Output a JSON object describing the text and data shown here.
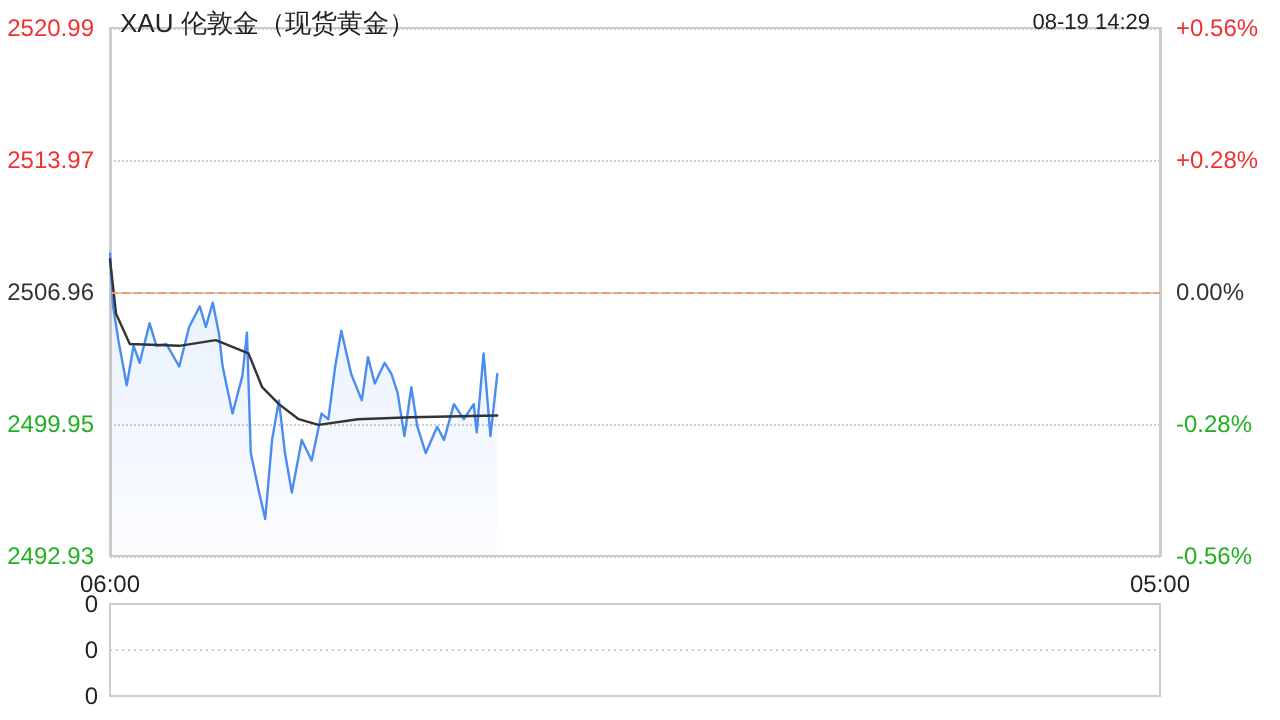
{
  "chart_data": [
    {
      "type": "line",
      "title": "XAU 伦敦金（现货黄金）",
      "annotations": [
        "08-19 14:29"
      ],
      "series": [
        {
          "type": "area",
          "color": "#4a8cf0",
          "x": [
            "--08-19T06:00",
            "--08-19T06:04",
            "--08-19T06:11",
            "--08-19T06:22",
            "--08-19T06:31",
            "--08-19T06:39",
            "--08-19T06:52",
            "--08-19T07:01",
            "--08-19T07:14",
            "--08-19T07:31",
            "--08-19T07:44",
            "--08-19T07:58",
            "--08-19T08:06",
            "--08-19T08:15",
            "--08-19T08:23",
            "--08-19T08:28",
            "--08-19T08:41",
            "--08-19T08:54",
            "--08-19T09:00",
            "--08-19T09:05",
            "--08-19T09:16",
            "--08-19T09:24",
            "--08-19T09:33",
            "--08-19T09:42",
            "--08-19T09:50",
            "--08-19T09:59",
            "--08-19T10:12",
            "--08-19T10:25",
            "--08-19T10:38",
            "--08-19T10:47",
            "--08-19T10:56",
            "--08-19T11:04",
            "--08-19T11:17",
            "--08-19T11:31",
            "--08-19T11:39",
            "--08-19T11:48",
            "--08-19T12:01",
            "--08-19T12:10",
            "--08-19T12:18",
            "--08-19T12:27",
            "--08-19T12:36",
            "--08-19T12:44",
            "--08-19T12:55",
            "--08-19T13:10",
            "--08-19T13:19",
            "--08-19T13:32",
            "--08-19T13:45",
            "--08-19T13:58",
            "--08-19T14:02",
            "--08-19T14:11",
            "--08-19T14:20",
            "--08-19T14:29"
          ],
          "values": [
            2509.0,
            2506.2,
            2504.4,
            2502.0,
            2504.1,
            2503.2,
            2505.3,
            2504.1,
            2504.2,
            2503.0,
            2505.1,
            2506.2,
            2505.1,
            2506.4,
            2504.8,
            2503.0,
            2500.5,
            2502.5,
            2504.8,
            2498.4,
            2496.3,
            2494.9,
            2499.1,
            2501.2,
            2498.4,
            2496.3,
            2499.1,
            2498.0,
            2500.5,
            2500.2,
            2503.0,
            2504.9,
            2502.6,
            2501.2,
            2503.5,
            2502.1,
            2503.2,
            2502.6,
            2501.6,
            2499.3,
            2501.9,
            2499.8,
            2498.4,
            2499.8,
            2499.1,
            2501.0,
            2500.2,
            2501.0,
            2499.5,
            2503.7,
            2499.3,
            2502.6
          ]
        },
        {
          "type": "line",
          "color": "#333333",
          "x": [
            "--08-19T06:00",
            "--08-19T06:08",
            "--08-19T06:26",
            "--08-19T07:31",
            "--08-19T08:19",
            "--08-19T09:02",
            "--08-19T09:20",
            "--08-19T09:42",
            "--08-19T10:08",
            "--08-19T10:34",
            "--08-19T11:26",
            "--08-19T12:36",
            "--08-19T14:29"
          ],
          "values": [
            2508.7,
            2505.8,
            2504.2,
            2504.1,
            2504.4,
            2503.7,
            2501.9,
            2501.0,
            2500.2,
            2499.9,
            2500.2,
            2500.3,
            2500.4
          ]
        }
      ],
      "xlim": [
        "--08-19T06:00",
        "--08-20T05:00"
      ],
      "xticks": [
        {
          "value": "--08-19T06:00",
          "label": "06:00"
        },
        {
          "value": "--08-20T05:00",
          "label": "05:00"
        }
      ],
      "ylim": [
        2492.93,
        2520.99
      ],
      "yticks": [
        2492.93,
        2499.95,
        2506.96,
        2513.97,
        2520.99
      ],
      "y2lim": [
        -0.56,
        0.56
      ],
      "y2ticks": [
        {
          "value": -0.56,
          "label": "-0.56%"
        },
        {
          "value": -0.28,
          "label": "-0.28%"
        },
        {
          "value": 0,
          "label": "0.00%"
        },
        {
          "value": 0.28,
          "label": "+0.28%"
        },
        {
          "value": 0.56,
          "label": "+0.56%"
        }
      ],
      "ref_lines": [
        {
          "axis": "y",
          "value": 2506.96,
          "color": "#f0a070",
          "line_style": "dashed"
        }
      ],
      "grid": "y",
      "marker": "none"
    },
    {
      "type": "other",
      "annotations": [
        "0",
        "0",
        "0"
      ]
    }
  ]
}
